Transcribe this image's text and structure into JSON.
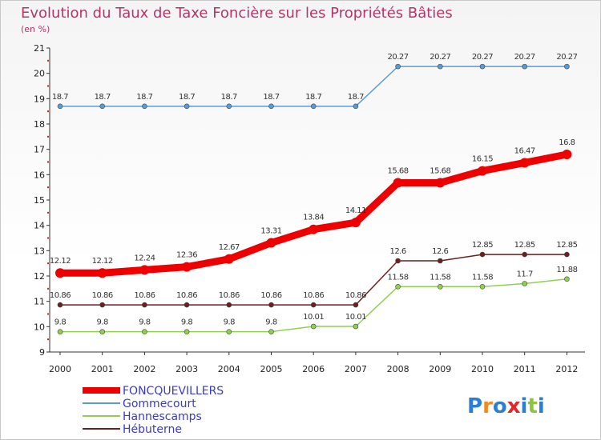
{
  "title": "Evolution du Taux de Taxe Foncière sur les Propriétés Bâties",
  "subtitle": "(en %)",
  "logo": "Proxiti",
  "chart_data": {
    "type": "line",
    "x": [
      "2000",
      "2001",
      "2002",
      "2003",
      "2004",
      "2005",
      "2006",
      "2007",
      "2008",
      "2009",
      "2010",
      "2011",
      "2012"
    ],
    "ylim": [
      9,
      21
    ],
    "yticks": [
      9,
      10,
      11,
      12,
      13,
      14,
      15,
      16,
      17,
      18,
      19,
      20,
      21
    ],
    "grid": false,
    "legend_position": "bottom-left",
    "series": [
      {
        "name": "FONCQUEVILLERS",
        "color": "#ee0000",
        "labels": [
          "12.12",
          "12.12",
          "12.24",
          "12.36",
          "12.67",
          "13.31",
          "13.84",
          "14.11",
          "15.68",
          "15.68",
          "16.15",
          "16.47",
          "16.8"
        ],
        "values": [
          12.12,
          12.12,
          12.24,
          12.36,
          12.67,
          13.31,
          13.84,
          14.11,
          15.68,
          15.68,
          16.15,
          16.47,
          16.8
        ]
      },
      {
        "name": "Gommecourt",
        "color": "#5b9bd5",
        "labels": [
          "18.7",
          "18.7",
          "18.7",
          "18.7",
          "18.7",
          "18.7",
          "18.7",
          "18.7",
          "20.27",
          "20.27",
          "20.27",
          "20.27",
          "20.27"
        ],
        "values": [
          18.7,
          18.7,
          18.7,
          18.7,
          18.7,
          18.7,
          18.7,
          18.7,
          20.27,
          20.27,
          20.27,
          20.27,
          20.27
        ]
      },
      {
        "name": "Hannescamps",
        "color": "#8fd14f",
        "labels": [
          "9.8",
          "9.8",
          "9.8",
          "9.8",
          "9.8",
          "9.8",
          "10.01",
          "10.01",
          "11.58",
          "11.58",
          "11.58",
          "11.7",
          "11.88"
        ],
        "values": [
          9.8,
          9.8,
          9.8,
          9.8,
          9.8,
          9.8,
          10.01,
          10.01,
          11.58,
          11.58,
          11.58,
          11.7,
          11.88
        ]
      },
      {
        "name": "Hébuterne",
        "color": "#6b1f1f",
        "labels": [
          "10.86",
          "10.86",
          "10.86",
          "10.86",
          "10.86",
          "10.86",
          "10.86",
          "10.86",
          "12.6",
          "12.6",
          "12.85",
          "12.85",
          "12.85"
        ],
        "values": [
          10.86,
          10.86,
          10.86,
          10.86,
          10.86,
          10.86,
          10.86,
          10.86,
          12.6,
          12.6,
          12.85,
          12.85,
          12.85
        ]
      }
    ]
  }
}
